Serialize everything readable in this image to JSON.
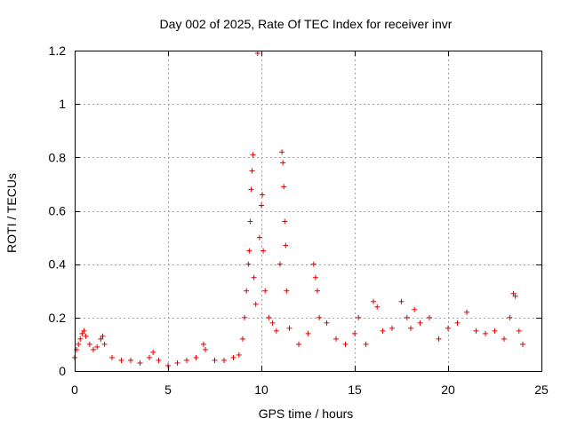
{
  "chart_data": {
    "type": "scatter",
    "title": "Day 002 of 2025, Rate Of TEC Index for receiver invr",
    "xlabel": "GPS time / hours",
    "ylabel": "ROTI / TECUs",
    "xlim": [
      0,
      25
    ],
    "ylim": [
      0,
      1.2
    ],
    "xticks": [
      0,
      5,
      10,
      15,
      20,
      25
    ],
    "xtick_labels": [
      "0",
      "5",
      "10",
      "15",
      "20",
      "25"
    ],
    "yticks": [
      0,
      0.2,
      0.4,
      0.6,
      0.8,
      1,
      1.2
    ],
    "ytick_labels": [
      "0",
      "0.2",
      "0.4",
      "0.6",
      "0.8",
      "1",
      "1.2"
    ],
    "grid": true,
    "marker": "+",
    "color": "#e00000",
    "series": [
      {
        "name": "ROTI",
        "points": [
          [
            0.0,
            0.05
          ],
          [
            0.1,
            0.08
          ],
          [
            0.2,
            0.1
          ],
          [
            0.3,
            0.12
          ],
          [
            0.4,
            0.14
          ],
          [
            0.5,
            0.15
          ],
          [
            0.6,
            0.13
          ],
          [
            0.8,
            0.1
          ],
          [
            1.0,
            0.08
          ],
          [
            1.2,
            0.09
          ],
          [
            1.4,
            0.12
          ],
          [
            1.5,
            0.13
          ],
          [
            1.6,
            0.1
          ],
          [
            2.0,
            0.05
          ],
          [
            2.5,
            0.04
          ],
          [
            3.0,
            0.04
          ],
          [
            3.5,
            0.03
          ],
          [
            4.0,
            0.05
          ],
          [
            4.2,
            0.07
          ],
          [
            4.5,
            0.04
          ],
          [
            5.0,
            0.02
          ],
          [
            5.5,
            0.03
          ],
          [
            6.0,
            0.04
          ],
          [
            6.5,
            0.05
          ],
          [
            6.9,
            0.1
          ],
          [
            7.0,
            0.08
          ],
          [
            7.5,
            0.04
          ],
          [
            8.0,
            0.04
          ],
          [
            8.5,
            0.05
          ],
          [
            8.8,
            0.06
          ],
          [
            9.0,
            0.12
          ],
          [
            9.1,
            0.2
          ],
          [
            9.2,
            0.3
          ],
          [
            9.3,
            0.4
          ],
          [
            9.35,
            0.45
          ],
          [
            9.4,
            0.56
          ],
          [
            9.45,
            0.68
          ],
          [
            9.5,
            0.75
          ],
          [
            9.55,
            0.81
          ],
          [
            9.6,
            0.35
          ],
          [
            9.7,
            0.25
          ],
          [
            9.8,
            1.19
          ],
          [
            9.9,
            0.5
          ],
          [
            10.0,
            0.62
          ],
          [
            10.05,
            0.66
          ],
          [
            10.1,
            0.45
          ],
          [
            10.2,
            0.3
          ],
          [
            10.4,
            0.2
          ],
          [
            10.6,
            0.18
          ],
          [
            10.8,
            0.15
          ],
          [
            11.0,
            0.4
          ],
          [
            11.1,
            0.82
          ],
          [
            11.15,
            0.78
          ],
          [
            11.2,
            0.69
          ],
          [
            11.25,
            0.56
          ],
          [
            11.3,
            0.47
          ],
          [
            11.35,
            0.3
          ],
          [
            11.5,
            0.16
          ],
          [
            12.0,
            0.1
          ],
          [
            12.5,
            0.14
          ],
          [
            12.8,
            0.4
          ],
          [
            12.9,
            0.35
          ],
          [
            13.0,
            0.3
          ],
          [
            13.1,
            0.2
          ],
          [
            13.5,
            0.18
          ],
          [
            14.0,
            0.12
          ],
          [
            14.5,
            0.1
          ],
          [
            15.0,
            0.14
          ],
          [
            15.2,
            0.2
          ],
          [
            15.6,
            0.1
          ],
          [
            16.0,
            0.26
          ],
          [
            16.2,
            0.24
          ],
          [
            16.5,
            0.15
          ],
          [
            17.0,
            0.16
          ],
          [
            17.5,
            0.26
          ],
          [
            17.8,
            0.2
          ],
          [
            18.0,
            0.16
          ],
          [
            18.2,
            0.23
          ],
          [
            18.5,
            0.18
          ],
          [
            19.0,
            0.2
          ],
          [
            19.5,
            0.12
          ],
          [
            20.0,
            0.16
          ],
          [
            20.5,
            0.18
          ],
          [
            21.0,
            0.22
          ],
          [
            21.5,
            0.15
          ],
          [
            22.0,
            0.14
          ],
          [
            22.5,
            0.15
          ],
          [
            23.0,
            0.12
          ],
          [
            23.3,
            0.2
          ],
          [
            23.5,
            0.29
          ],
          [
            23.6,
            0.28
          ],
          [
            23.8,
            0.15
          ],
          [
            24.0,
            0.1
          ]
        ]
      }
    ]
  }
}
